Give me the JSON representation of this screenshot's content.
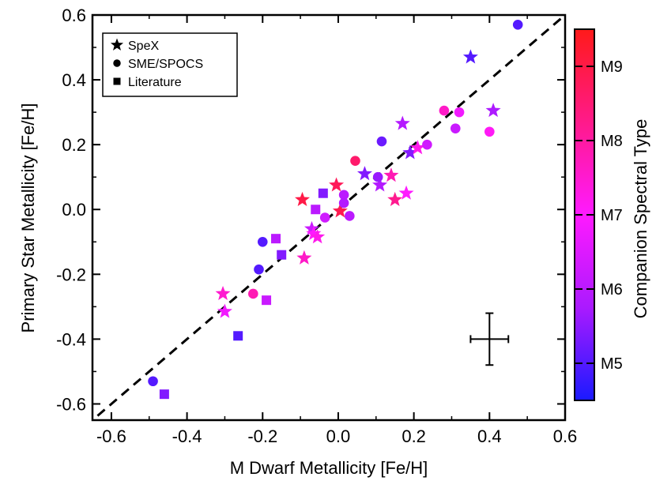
{
  "chart_data": {
    "type": "scatter",
    "title": "",
    "xlabel": "M Dwarf Metallicity [Fe/H]",
    "ylabel": "Primary Star Metallicity [Fe/H]",
    "xlim": [
      -0.65,
      0.6
    ],
    "ylim": [
      -0.65,
      0.6
    ],
    "x_ticks": [
      -0.6,
      -0.4,
      -0.2,
      0.0,
      0.2,
      0.4,
      0.6
    ],
    "y_ticks": [
      -0.6,
      -0.4,
      -0.2,
      0.0,
      0.2,
      0.4,
      0.6
    ],
    "x_tick_labels": [
      "-0.6",
      "-0.4",
      "-0.2",
      "0.0",
      "0.2",
      "0.4",
      "0.6"
    ],
    "y_tick_labels": [
      "-0.6",
      "-0.4",
      "-0.2",
      "0.0",
      "0.2",
      "0.4",
      "0.6"
    ],
    "one_to_one_line": true,
    "grid": false,
    "legend": {
      "position": "top-left",
      "entries": [
        {
          "label": "SpeX",
          "marker": "star"
        },
        {
          "label": "SME/SPOCS",
          "marker": "circle"
        },
        {
          "label": "Literature",
          "marker": "square"
        }
      ]
    },
    "typical_error": {
      "x": 0.4,
      "y": -0.4,
      "xerr": 0.05,
      "yerr": 0.08
    },
    "colorbar": {
      "title": "Companion Spectral Type",
      "range": [
        4.5,
        9.5
      ],
      "ticks": [
        5,
        6,
        7,
        8,
        9
      ],
      "tick_labels": [
        "M5",
        "M6",
        "M7",
        "M8",
        "M9"
      ],
      "colors": [
        "#1a1aff",
        "#aa1aff",
        "#ff1aff",
        "#ff1a8a",
        "#ff1a1a"
      ]
    },
    "series": [
      {
        "marker": "star",
        "points": [
          {
            "x": 0.35,
            "y": 0.47,
            "c": 5.0
          },
          {
            "x": 0.41,
            "y": 0.305,
            "c": 5.8
          },
          {
            "x": 0.17,
            "y": 0.265,
            "c": 5.9
          },
          {
            "x": 0.19,
            "y": 0.175,
            "c": 5.4
          },
          {
            "x": 0.21,
            "y": 0.19,
            "c": 7.2
          },
          {
            "x": 0.07,
            "y": 0.11,
            "c": 5.4
          },
          {
            "x": 0.11,
            "y": 0.075,
            "c": 5.9
          },
          {
            "x": 0.14,
            "y": 0.105,
            "c": 7.8
          },
          {
            "x": 0.18,
            "y": 0.05,
            "c": 7.0
          },
          {
            "x": 0.15,
            "y": 0.03,
            "c": 8.2
          },
          {
            "x": -0.005,
            "y": 0.075,
            "c": 8.8
          },
          {
            "x": 0.005,
            "y": -0.005,
            "c": 8.9
          },
          {
            "x": -0.095,
            "y": 0.03,
            "c": 9.0
          },
          {
            "x": -0.07,
            "y": -0.06,
            "c": 6.2
          },
          {
            "x": -0.065,
            "y": -0.075,
            "c": 7.0
          },
          {
            "x": -0.055,
            "y": -0.085,
            "c": 7.2
          },
          {
            "x": -0.09,
            "y": -0.15,
            "c": 7.6
          },
          {
            "x": -0.305,
            "y": -0.26,
            "c": 7.5
          },
          {
            "x": -0.3,
            "y": -0.315,
            "c": 6.8
          }
        ]
      },
      {
        "marker": "circle",
        "points": [
          {
            "x": 0.475,
            "y": 0.57,
            "c": 5.0
          },
          {
            "x": 0.28,
            "y": 0.305,
            "c": 7.6
          },
          {
            "x": 0.32,
            "y": 0.3,
            "c": 6.8
          },
          {
            "x": 0.4,
            "y": 0.24,
            "c": 7.1
          },
          {
            "x": 0.31,
            "y": 0.25,
            "c": 6.2
          },
          {
            "x": 0.235,
            "y": 0.2,
            "c": 6.3
          },
          {
            "x": 0.115,
            "y": 0.21,
            "c": 5.2
          },
          {
            "x": 0.045,
            "y": 0.15,
            "c": 8.6
          },
          {
            "x": 0.105,
            "y": 0.1,
            "c": 5.6
          },
          {
            "x": 0.015,
            "y": 0.045,
            "c": 6.0
          },
          {
            "x": 0.015,
            "y": 0.02,
            "c": 5.9
          },
          {
            "x": 0.03,
            "y": -0.02,
            "c": 6.0
          },
          {
            "x": -0.035,
            "y": -0.025,
            "c": 6.3
          },
          {
            "x": -0.2,
            "y": -0.1,
            "c": 5.0
          },
          {
            "x": -0.21,
            "y": -0.185,
            "c": 5.0
          },
          {
            "x": -0.225,
            "y": -0.26,
            "c": 7.8
          },
          {
            "x": -0.49,
            "y": -0.53,
            "c": 5.0
          }
        ]
      },
      {
        "marker": "square",
        "points": [
          {
            "x": -0.04,
            "y": 0.05,
            "c": 5.4
          },
          {
            "x": -0.06,
            "y": 0.0,
            "c": 6.0
          },
          {
            "x": -0.165,
            "y": -0.09,
            "c": 6.0
          },
          {
            "x": -0.15,
            "y": -0.14,
            "c": 5.4
          },
          {
            "x": -0.19,
            "y": -0.28,
            "c": 6.2
          },
          {
            "x": -0.265,
            "y": -0.39,
            "c": 5.0
          },
          {
            "x": -0.46,
            "y": -0.57,
            "c": 5.4
          }
        ]
      }
    ]
  },
  "legend_labels": {
    "spex": "SpeX",
    "sme": "SME/SPOCS",
    "lit": "Literature"
  }
}
